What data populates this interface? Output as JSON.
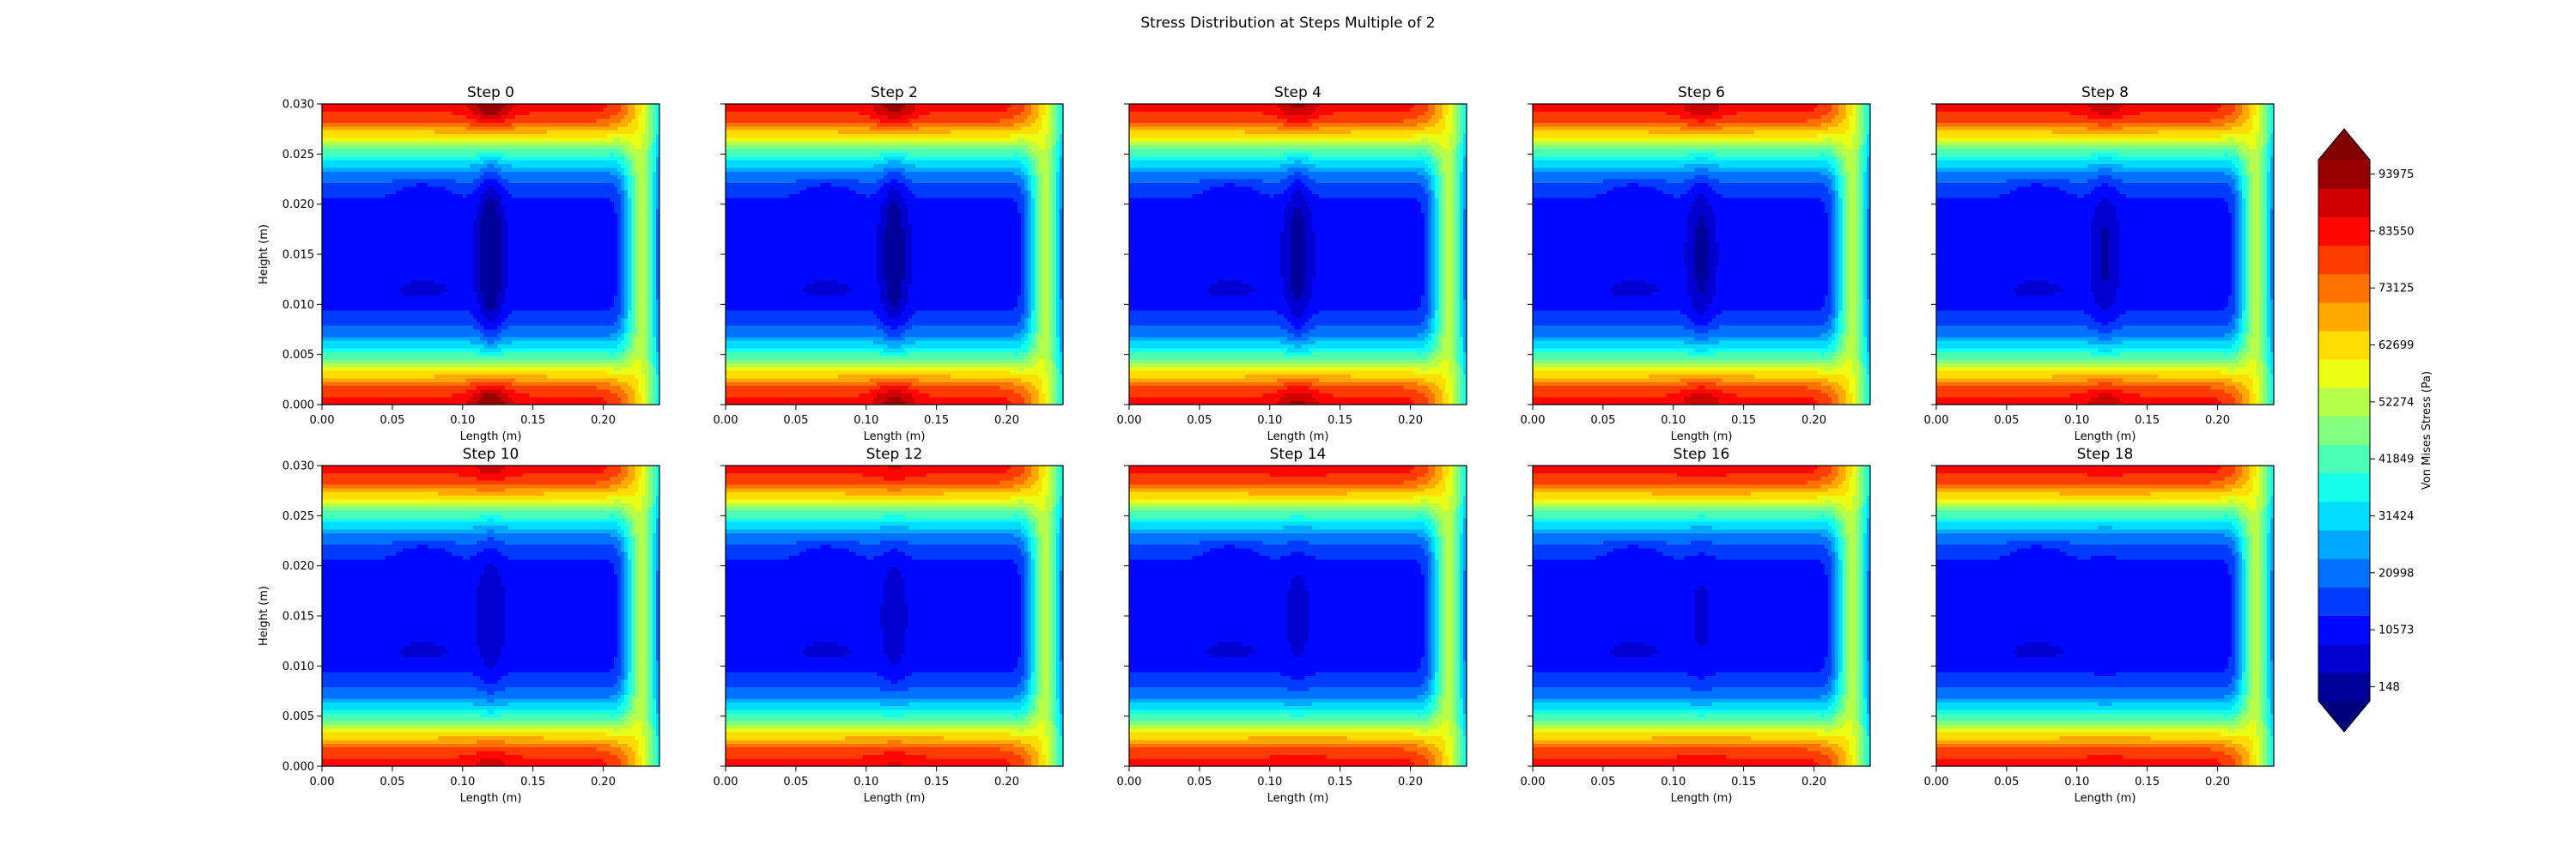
{
  "figure": {
    "title": "Stress Distribution at Steps Multiple of 2"
  },
  "chart_data": {
    "type": "heatmap",
    "subtype": "filled-contour",
    "xlabel": "Length (m)",
    "ylabel": "Height (m)",
    "xlim": [
      0.0,
      0.24
    ],
    "ylim": [
      0.0,
      0.03
    ],
    "x_ticks": [
      "0.00",
      "0.05",
      "0.10",
      "0.15",
      "0.20"
    ],
    "y_ticks": [
      "0.000",
      "0.005",
      "0.010",
      "0.015",
      "0.020",
      "0.025",
      "0.030"
    ],
    "grid": false,
    "colormap": "jet",
    "colorbar": {
      "label": "Von Mises Stress (Pa)",
      "ticks": [
        "148",
        "10573",
        "20998",
        "31424",
        "41849",
        "52274",
        "62699",
        "73125",
        "83550",
        "93975"
      ],
      "range": [
        148,
        99188
      ],
      "levels": 19,
      "extend": "both"
    },
    "panels": [
      {
        "title": "Step 0",
        "center_intensity": 1.0
      },
      {
        "title": "Step 2",
        "center_intensity": 0.85
      },
      {
        "title": "Step 4",
        "center_intensity": 0.72
      },
      {
        "title": "Step 6",
        "center_intensity": 0.6
      },
      {
        "title": "Step 8",
        "center_intensity": 0.5
      },
      {
        "title": "Step 10",
        "center_intensity": 0.4
      },
      {
        "title": "Step 12",
        "center_intensity": 0.3
      },
      {
        "title": "Step 14",
        "center_intensity": 0.22
      },
      {
        "title": "Step 16",
        "center_intensity": 0.15
      },
      {
        "title": "Step 18",
        "center_intensity": 0.08
      }
    ]
  }
}
